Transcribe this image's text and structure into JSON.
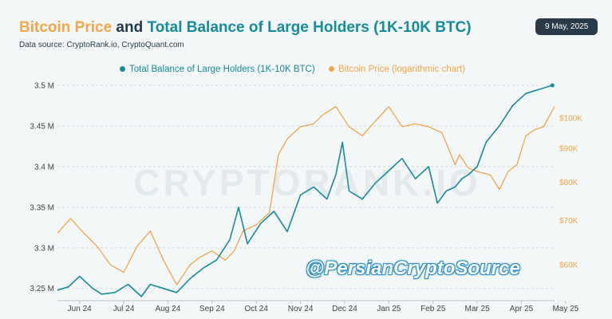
{
  "title": {
    "part1": "Bitcoin Price",
    "part2": " and ",
    "part3": "Total Balance of Large Holders (1K-10K BTC)"
  },
  "subtitle": "Data source: CryptoRank.io, CryptoQuant.com",
  "date_badge": "9 May, 2025",
  "watermark_bg": "CRYPTORANK.IO",
  "watermark_handle": "@PersianCryptoSource",
  "colors": {
    "balance": "#178c9a",
    "btc": "#f5a54a",
    "title_dark": "#1f3a4d"
  },
  "chart_data": {
    "type": "line",
    "legend": [
      "Total Balance of Large Holders (1K-10K BTC)",
      "Bitcoin Price (logarithmic chart)"
    ],
    "legend_placement": "top",
    "x_ticks": [
      "Jun 24",
      "Jul 24",
      "Aug 24",
      "Sep 24",
      "Oct 24",
      "Nov 24",
      "Dec 24",
      "Jan 25",
      "Feb 25",
      "Mar 25",
      "Apr 25",
      "May 25"
    ],
    "y_left": {
      "ticks": [
        "3.25 M",
        "3.3 M",
        "3.35 M",
        "3.4 M",
        "3.45 M",
        "3.5 M"
      ],
      "range": [
        3.235,
        3.5
      ]
    },
    "y_right": {
      "ticks": [
        "$60K",
        "$70K",
        "$80K",
        "$90K",
        "$100K"
      ],
      "scale": "log",
      "range": [
        53000,
        112000
      ]
    },
    "x_range": [
      0,
      11.25
    ],
    "grid": "horizontal",
    "series": [
      {
        "name": "Total Balance of Large Holders (1K-10K BTC)",
        "axis": "left",
        "x": [
          0.0,
          0.25,
          0.5,
          0.8,
          1.0,
          1.3,
          1.6,
          1.9,
          2.1,
          2.4,
          2.7,
          3.0,
          3.3,
          3.6,
          3.9,
          4.1,
          4.3,
          4.6,
          4.9,
          5.2,
          5.5,
          5.8,
          6.1,
          6.3,
          6.45,
          6.6,
          6.9,
          7.2,
          7.5,
          7.8,
          8.1,
          8.4,
          8.6,
          8.8,
          9.0,
          9.15,
          9.3,
          9.5,
          9.7,
          10.0,
          10.3,
          10.6,
          10.9,
          11.2
        ],
        "values": [
          3.248,
          3.252,
          3.265,
          3.25,
          3.243,
          3.245,
          3.255,
          3.24,
          3.255,
          3.25,
          3.245,
          3.262,
          3.275,
          3.285,
          3.31,
          3.35,
          3.305,
          3.33,
          3.345,
          3.32,
          3.365,
          3.375,
          3.36,
          3.39,
          3.43,
          3.37,
          3.36,
          3.38,
          3.395,
          3.41,
          3.385,
          3.4,
          3.355,
          3.37,
          3.375,
          3.385,
          3.39,
          3.4,
          3.43,
          3.45,
          3.475,
          3.49,
          3.495,
          3.5
        ]
      },
      {
        "name": "Bitcoin Price (logarithmic chart)",
        "axis": "right",
        "x": [
          0.0,
          0.3,
          0.6,
          0.9,
          1.2,
          1.5,
          1.8,
          2.1,
          2.4,
          2.7,
          3.0,
          3.2,
          3.5,
          3.8,
          4.0,
          4.2,
          4.5,
          4.8,
          5.0,
          5.2,
          5.5,
          5.8,
          6.0,
          6.3,
          6.6,
          6.9,
          7.2,
          7.5,
          7.8,
          8.1,
          8.4,
          8.7,
          9.0,
          9.1,
          9.3,
          9.5,
          9.8,
          10.0,
          10.2,
          10.4,
          10.6,
          10.8,
          11.0,
          11.25
        ],
        "values": [
          67000,
          70500,
          67000,
          64000,
          60000,
          58500,
          64000,
          67500,
          61000,
          56000,
          60000,
          61500,
          63000,
          61000,
          63000,
          67500,
          69000,
          72000,
          88000,
          93000,
          97000,
          98000,
          101000,
          104000,
          97000,
          94000,
          99000,
          104000,
          97000,
          98000,
          97000,
          95000,
          85000,
          88000,
          84000,
          83000,
          82000,
          78000,
          83000,
          85000,
          94000,
          96000,
          97000,
          104000
        ]
      }
    ]
  }
}
